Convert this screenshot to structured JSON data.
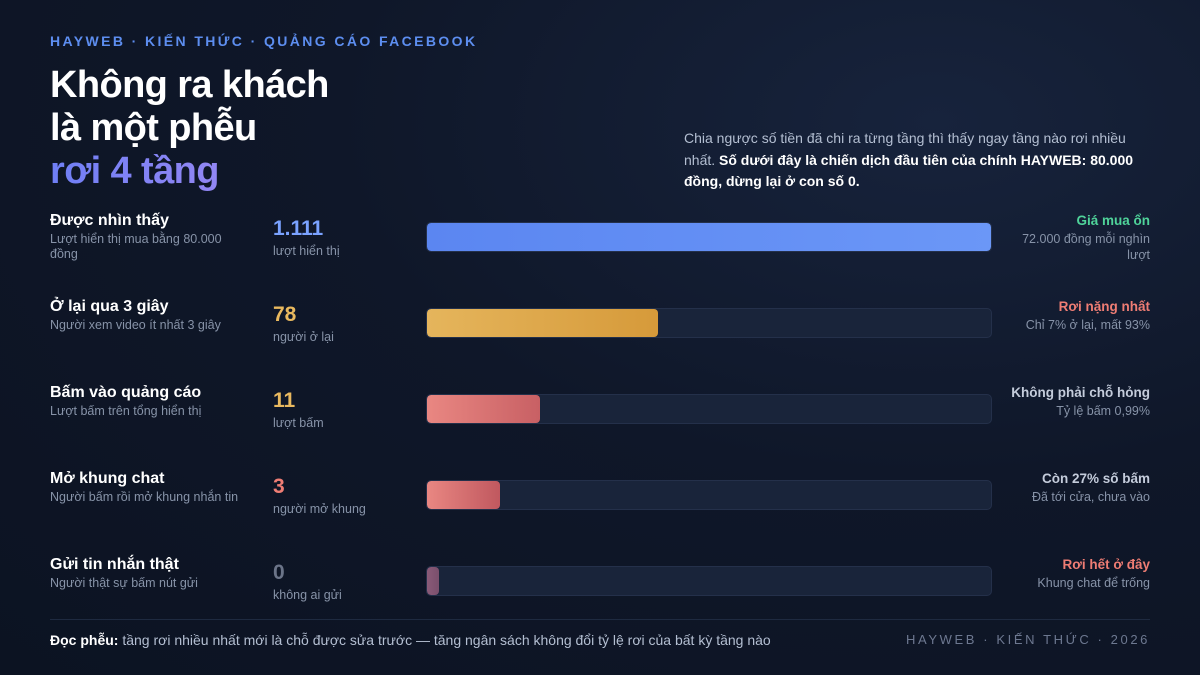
{
  "header": {
    "kicker": "HAYWEB · KIẾN THỨC · QUẢNG CÁO FACEBOOK",
    "title_line1": "Không ra khách",
    "title_line2": "là một phễu",
    "title_line3": "rơi 4 tầng"
  },
  "intro": {
    "text": "Chia ngược số tiền đã chi ra từng tầng thì thấy ngay tầng nào rơi nhiều nhất. ",
    "bold": "Số dưới đây là chiến dịch đầu tiên của chính HAYWEB: 80.000 đồng, dừng lại ở con số 0."
  },
  "colors": {
    "background": "#0f1729",
    "blue": "#6590f4",
    "gold": "#e1ac4a",
    "coral": "#e77d77",
    "mauve": "#8a5a78",
    "green": "#4fd39a",
    "track": "#19243a"
  },
  "chart_data": {
    "type": "bar",
    "orientation": "horizontal",
    "categories": [
      "Được nhìn thấy",
      "Ở lại qua 3 giây",
      "Bấm vào quảng cáo",
      "Mở khung chat",
      "Gửi tin nhắn thật"
    ],
    "values": [
      1111,
      78,
      11,
      3,
      0
    ],
    "scale_note": "bar lengths are not linear with values",
    "bar_fill_fraction": [
      1.0,
      0.41,
      0.2,
      0.13,
      0.02
    ]
  },
  "stages": [
    {
      "label": "Được nhìn thấy",
      "desc": "Lượt hiển thị mua bằng 80.000 đồng",
      "value": "1.111",
      "unit": "lượt hiển thị",
      "fill": 1.0,
      "num_color": "#7aa2ff",
      "fill_from": "#5b86f1",
      "fill_to": "#6b97f7",
      "status": "Giá mua ổn",
      "status_color": "#4fd39a",
      "note": "72.000 đồng mỗi nghìn lượt"
    },
    {
      "label": "Ở lại qua 3 giây",
      "desc": "Người xem video ít nhất 3 giây",
      "value": "78",
      "unit": "người ở lại",
      "fill": 0.41,
      "num_color": "#e9b95f",
      "fill_from": "#e5b55c",
      "fill_to": "#d69a3a",
      "status": "Rơi nặng nhất",
      "status_color": "#ef7d74",
      "note": "Chỉ 7% ở lại, mất 93%"
    },
    {
      "label": "Bấm vào quảng cáo",
      "desc": "Lượt bấm trên tổng hiển thị",
      "value": "11",
      "unit": "lượt bấm",
      "fill": 0.2,
      "num_color": "#e9b95f",
      "fill_from": "#e98782",
      "fill_to": "#c86064",
      "status": "Không phải chỗ hỏng",
      "status_color": "#c4ccdb",
      "note": "Tỷ lệ bấm 0,99%"
    },
    {
      "label": "Mở khung chat",
      "desc": "Người bấm rồi mở khung nhắn tin",
      "value": "3",
      "unit": "người mở khung",
      "fill": 0.13,
      "num_color": "#ef7d74",
      "fill_from": "#e98782",
      "fill_to": "#c0585f",
      "status": "Còn 27% số bấm",
      "status_color": "#c4ccdb",
      "note": "Đã tới cửa, chưa vào"
    },
    {
      "label": "Gửi tin nhắn thật",
      "desc": "Người thật sự bấm nút gửi",
      "value": "0",
      "unit": "không ai gửi",
      "fill": 0.02,
      "num_color": "#6b7488",
      "fill_from": "#8a5a78",
      "fill_to": "#7a4f6c",
      "status": "Rơi hết ở đây",
      "status_color": "#ef7d74",
      "note": "Khung chat để trống"
    }
  ],
  "footer": {
    "lead": "Đọc phễu:",
    "text": " tầng rơi nhiều nhất mới là chỗ được sửa trước — tăng ngân sách không đổi tỷ lệ rơi của bất kỳ tầng nào",
    "brand": "HAYWEB · KIẾN THỨC · 2026"
  }
}
